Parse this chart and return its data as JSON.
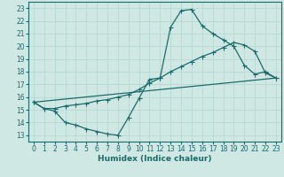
{
  "xlabel": "Humidex (Indice chaleur)",
  "ylabel": "",
  "bg_color": "#cfe8e4",
  "grid_color": "#b8d8d2",
  "line_color": "#1a6b6b",
  "xlim": [
    -0.5,
    23.5
  ],
  "ylim": [
    12.5,
    23.5
  ],
  "yticks": [
    13,
    14,
    15,
    16,
    17,
    18,
    19,
    20,
    21,
    22,
    23
  ],
  "xticks": [
    0,
    1,
    2,
    3,
    4,
    5,
    6,
    7,
    8,
    9,
    10,
    11,
    12,
    13,
    14,
    15,
    16,
    17,
    18,
    19,
    20,
    21,
    22,
    23
  ],
  "line1_x": [
    0,
    1,
    2,
    3,
    4,
    5,
    6,
    7,
    8,
    9,
    10,
    11,
    12,
    13,
    14,
    15,
    16,
    17,
    18,
    19,
    20,
    21,
    22,
    23
  ],
  "line1_y": [
    15.6,
    15.1,
    14.9,
    14.0,
    13.8,
    13.5,
    13.3,
    13.1,
    13.0,
    14.4,
    15.9,
    17.4,
    17.5,
    21.5,
    22.8,
    22.9,
    21.6,
    21.0,
    20.5,
    20.0,
    18.5,
    17.8,
    18.0,
    17.5
  ],
  "line2_x": [
    0,
    1,
    2,
    3,
    4,
    5,
    6,
    7,
    8,
    9,
    10,
    11,
    12,
    13,
    14,
    15,
    16,
    17,
    18,
    19,
    20,
    21,
    22,
    23
  ],
  "line2_y": [
    15.6,
    15.1,
    15.1,
    15.3,
    15.4,
    15.5,
    15.7,
    15.8,
    16.0,
    16.2,
    16.6,
    17.1,
    17.5,
    18.0,
    18.4,
    18.8,
    19.2,
    19.5,
    19.9,
    20.3,
    20.1,
    19.6,
    17.9,
    17.5
  ],
  "line3_x": [
    0,
    23
  ],
  "line3_y": [
    15.6,
    17.5
  ]
}
